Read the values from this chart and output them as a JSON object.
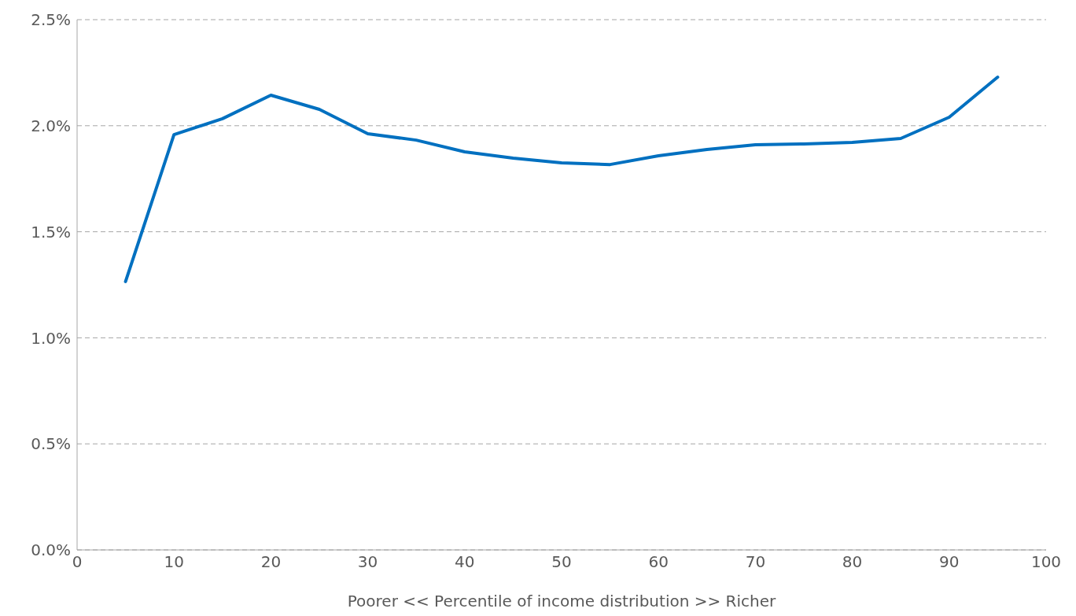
{
  "chart_data": {
    "type": "line",
    "xlabel": "Poorer    <<    Percentile of income distribution    >>    Richer",
    "x": [
      5,
      10,
      15,
      20,
      25,
      30,
      35,
      40,
      45,
      50,
      55,
      60,
      65,
      70,
      75,
      80,
      85,
      90,
      95
    ],
    "series": [
      {
        "color": "#0070c0",
        "values": [
          1.265,
          1.958,
          2.033,
          2.144,
          2.077,
          1.962,
          1.932,
          1.877,
          1.847,
          1.825,
          1.817,
          1.858,
          1.888,
          1.91,
          1.914,
          1.921,
          1.94,
          2.04,
          2.229
        ]
      }
    ],
    "xlim": [
      0,
      100
    ],
    "xticks": [
      0,
      10,
      20,
      30,
      40,
      50,
      60,
      70,
      80,
      90,
      100
    ],
    "ylim": [
      0,
      2.5
    ],
    "yticks": [
      {
        "value": 0,
        "label": "0.0%"
      },
      {
        "value": 0.5,
        "label": "0.5%"
      },
      {
        "value": 1,
        "label": "1.0%"
      },
      {
        "value": 1.5,
        "label": "1.5%"
      },
      {
        "value": 2,
        "label": "2.0%"
      },
      {
        "value": 2.5,
        "label": "2.5%"
      }
    ],
    "grid": "y",
    "legend": false,
    "marker": "none",
    "line_style": "solid"
  }
}
